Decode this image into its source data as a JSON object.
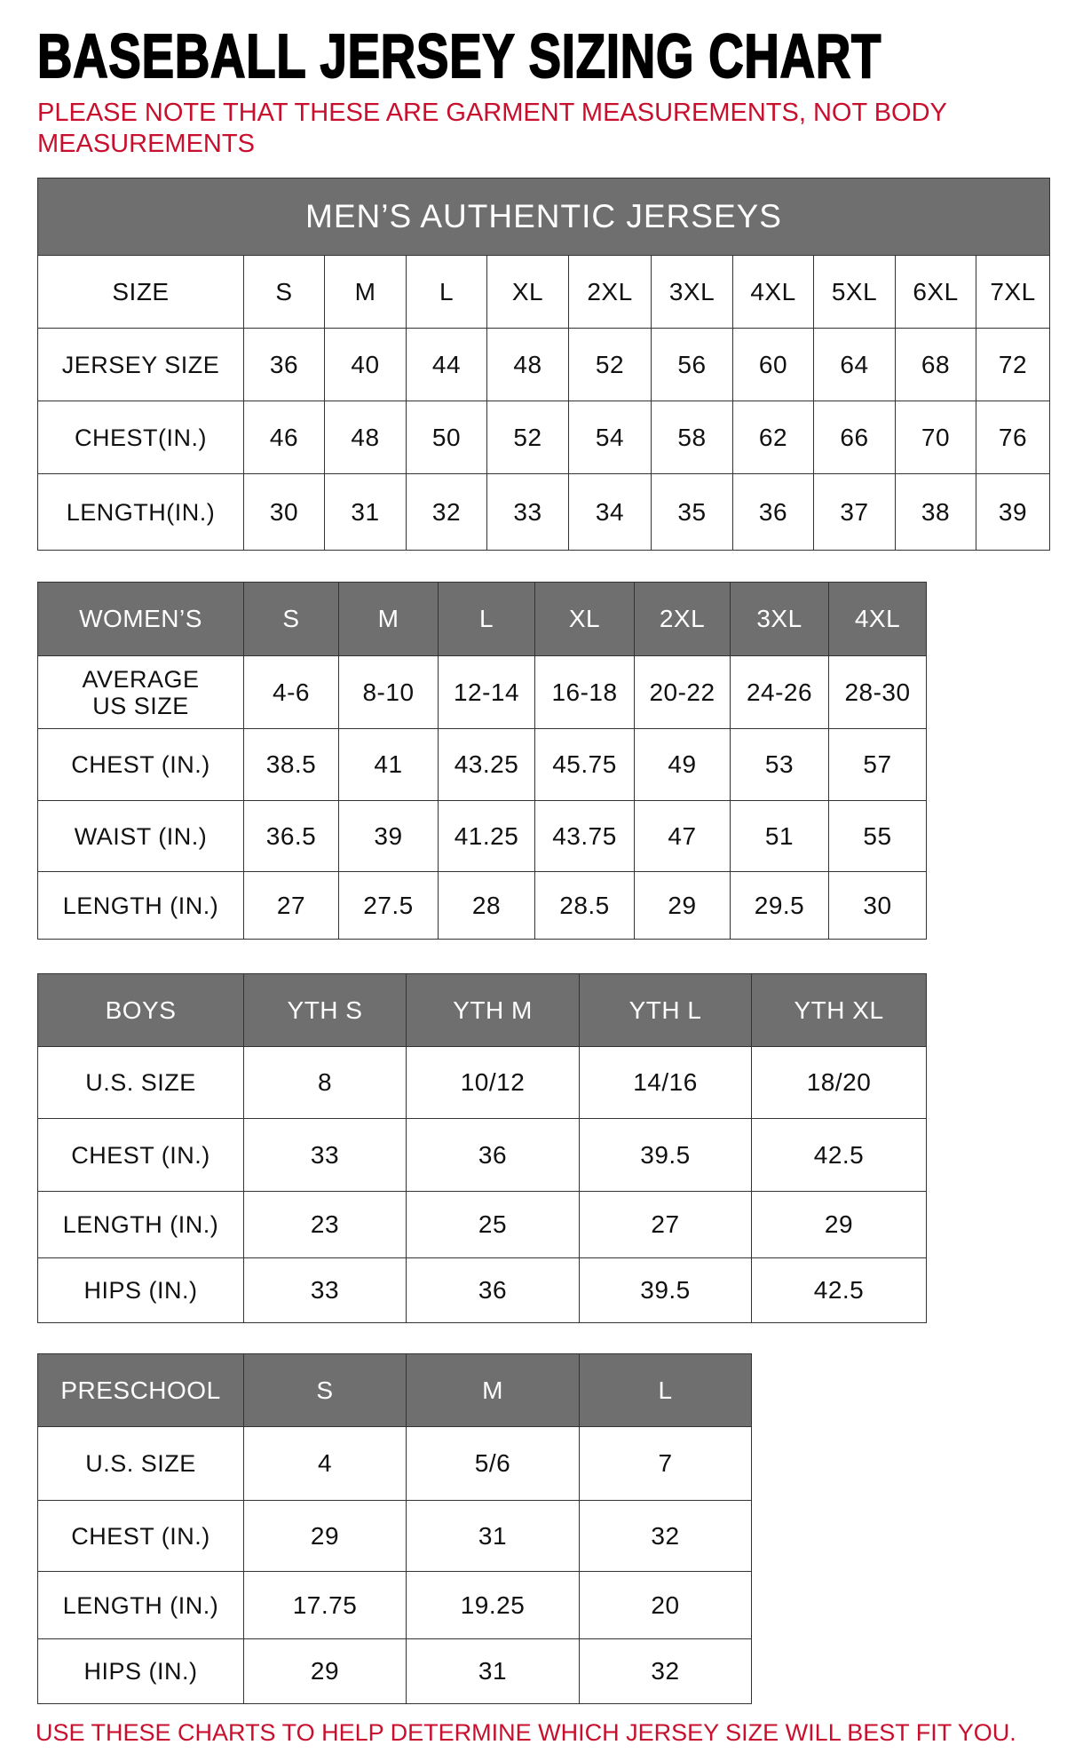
{
  "title": "BASEBALL JERSEY SIZING CHART",
  "note": "PLEASE NOTE THAT THESE ARE GARMENT MEASUREMENTS, NOT BODY MEASUREMENTS",
  "footer": "USE THESE CHARTS TO HELP DETERMINE WHICH JERSEY SIZE WILL BEST FIT YOU.",
  "colors": {
    "header_bg": "#6f6f6f",
    "note_red": "#c8102e"
  },
  "tables": [
    {
      "id": "mens",
      "banner": "MEN’S AUTHENTIC JERSEYS",
      "header_gray": false,
      "header": [
        "SIZE",
        "S",
        "M",
        "L",
        "XL",
        "2XL",
        "3XL",
        "4XL",
        "5XL",
        "6XL",
        "7XL"
      ],
      "rows": [
        [
          "JERSEY SIZE",
          "36",
          "40",
          "44",
          "48",
          "52",
          "56",
          "60",
          "64",
          "68",
          "72"
        ],
        [
          "CHEST(IN.)",
          "46",
          "48",
          "50",
          "52",
          "54",
          "58",
          "62",
          "66",
          "70",
          "76"
        ],
        [
          "LENGTH(IN.)",
          "30",
          "31",
          "32",
          "33",
          "34",
          "35",
          "36",
          "37",
          "38",
          "39"
        ]
      ]
    },
    {
      "id": "womens",
      "header_gray": true,
      "header": [
        "WOMEN’S",
        "S",
        "M",
        "L",
        "XL",
        "2XL",
        "3XL",
        "4XL"
      ],
      "rows": [
        [
          "AVERAGE\nUS SIZE",
          "4-6",
          "8-10",
          "12-14",
          "16-18",
          "20-22",
          "24-26",
          "28-30"
        ],
        [
          "CHEST (IN.)",
          "38.5",
          "41",
          "43.25",
          "45.75",
          "49",
          "53",
          "57"
        ],
        [
          "WAIST (IN.)",
          "36.5",
          "39",
          "41.25",
          "43.75",
          "47",
          "51",
          "55"
        ],
        [
          "LENGTH (IN.)",
          "27",
          "27.5",
          "28",
          "28.5",
          "29",
          "29.5",
          "30"
        ]
      ]
    },
    {
      "id": "boys",
      "header_gray": true,
      "header": [
        "BOYS",
        "YTH S",
        "YTH M",
        "YTH L",
        "YTH XL"
      ],
      "rows": [
        [
          "U.S. SIZE",
          "8",
          "10/12",
          "14/16",
          "18/20"
        ],
        [
          "CHEST (IN.)",
          "33",
          "36",
          "39.5",
          "42.5"
        ],
        [
          "LENGTH (IN.)",
          "23",
          "25",
          "27",
          "29"
        ],
        [
          "HIPS (IN.)",
          "33",
          "36",
          "39.5",
          "42.5"
        ]
      ]
    },
    {
      "id": "preschool",
      "header_gray": true,
      "header": [
        "PRESCHOOL",
        "S",
        "M",
        "L"
      ],
      "rows": [
        [
          "U.S. SIZE",
          "4",
          "5/6",
          "7"
        ],
        [
          "CHEST (IN.)",
          "29",
          "31",
          "32"
        ],
        [
          "LENGTH (IN.)",
          "17.75",
          "19.25",
          "20"
        ],
        [
          "HIPS (IN.)",
          "29",
          "31",
          "32"
        ]
      ]
    }
  ]
}
